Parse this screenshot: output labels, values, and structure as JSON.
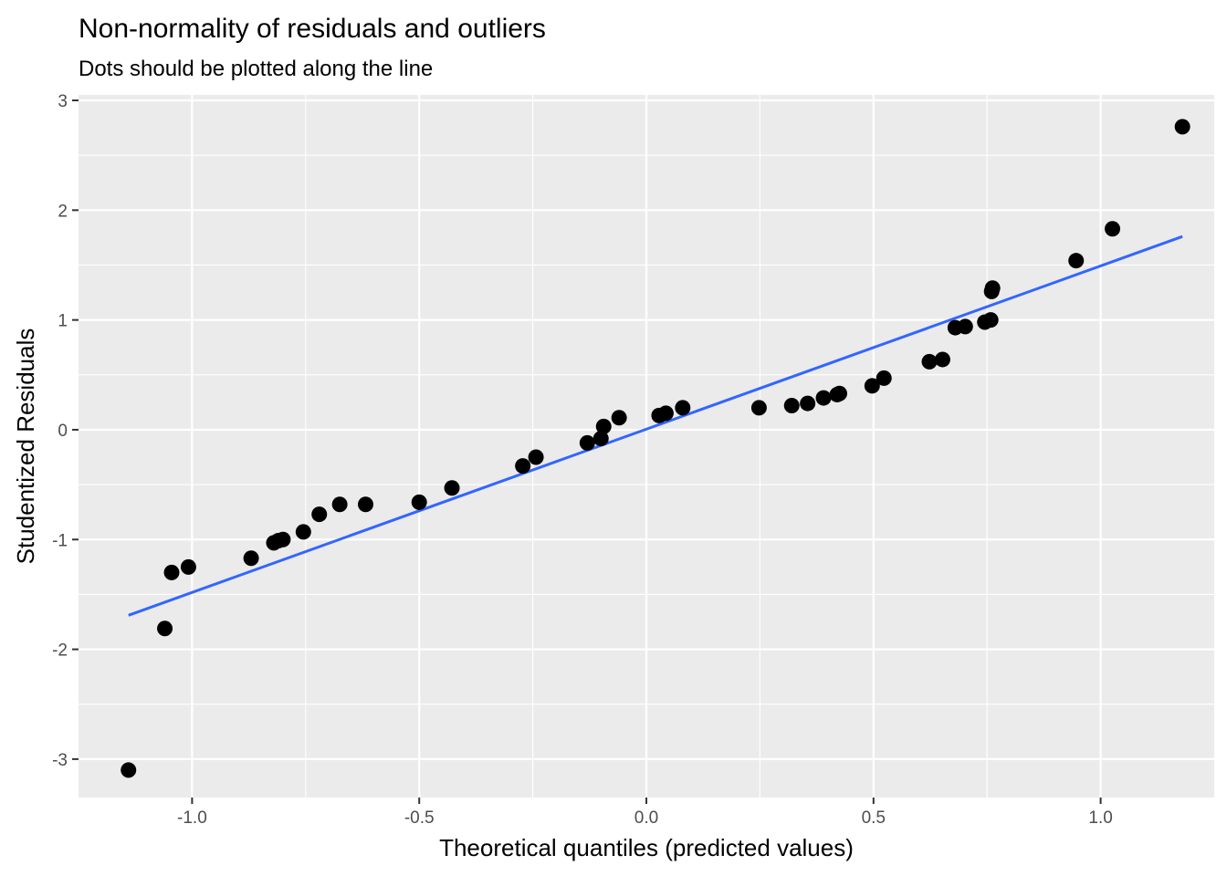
{
  "chart_data": {
    "type": "scatter",
    "title": "Non-normality of residuals and outliers",
    "subtitle": "Dots should be plotted along the line",
    "xlabel": "Theoretical quantiles (predicted values)",
    "ylabel": "Studentized Residuals",
    "xlim": [
      -1.25,
      1.25
    ],
    "ylim": [
      -3.35,
      3.05
    ],
    "x_ticks": [
      -1.0,
      -0.5,
      0.0,
      0.5,
      1.0
    ],
    "x_tick_labels": [
      "-1.0",
      "-0.5",
      "0.0",
      "0.5",
      "1.0"
    ],
    "y_ticks": [
      -3,
      -2,
      -1,
      0,
      1,
      2,
      3
    ],
    "y_tick_labels": [
      "-3",
      "-2",
      "-1",
      "0",
      "1",
      "2",
      "3"
    ],
    "grid": true,
    "colors": {
      "panel": "#ebebeb",
      "grid": "#ffffff",
      "points": "#000000",
      "line": "#3366ff"
    },
    "reference_line": {
      "x": [
        -1.14,
        1.18
      ],
      "y": [
        -1.69,
        1.76
      ]
    },
    "points": {
      "x": [
        -1.14,
        -1.06,
        -1.045,
        -1.008,
        -0.87,
        -0.82,
        -0.81,
        -0.8,
        -0.755,
        -0.72,
        -0.675,
        -0.618,
        -0.5,
        -0.428,
        -0.272,
        -0.243,
        -0.13,
        -0.1,
        -0.094,
        -0.06,
        0.028,
        0.043,
        0.08,
        0.248,
        0.32,
        0.355,
        0.39,
        0.42,
        0.425,
        0.497,
        0.523,
        0.623,
        0.652,
        0.68,
        0.702,
        0.745,
        0.758,
        0.76,
        0.762,
        0.946,
        1.026,
        1.18
      ],
      "y": [
        -3.1,
        -1.81,
        -1.3,
        -1.25,
        -1.17,
        -1.03,
        -1.01,
        -1.0,
        -0.93,
        -0.77,
        -0.68,
        -0.68,
        -0.66,
        -0.53,
        -0.33,
        -0.25,
        -0.12,
        -0.08,
        0.03,
        0.11,
        0.13,
        0.15,
        0.2,
        0.2,
        0.22,
        0.24,
        0.29,
        0.32,
        0.33,
        0.4,
        0.47,
        0.62,
        0.64,
        0.93,
        0.94,
        0.98,
        1.0,
        1.26,
        1.29,
        1.54,
        1.83,
        2.76
      ]
    }
  }
}
